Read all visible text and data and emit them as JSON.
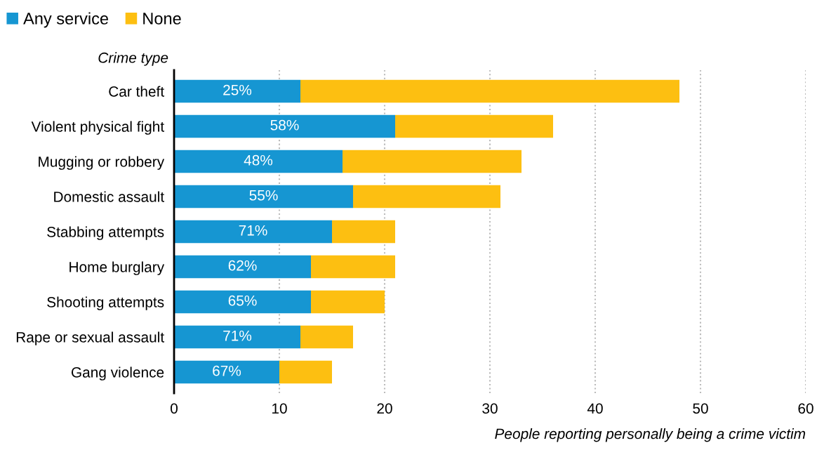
{
  "chart_data": {
    "type": "bar",
    "orientation": "horizontal",
    "stacked": true,
    "categories": [
      "Car theft",
      "Violent physical fight",
      "Mugging or robbery",
      "Domestic assault",
      "Stabbing attempts",
      "Home burglary",
      "Shooting attempts",
      "Rape or sexual assault",
      "Gang violence"
    ],
    "series": [
      {
        "name": "Any service",
        "color": "#1696d2",
        "values": [
          12,
          21,
          16,
          17,
          15,
          13,
          13,
          12,
          10
        ]
      },
      {
        "name": "None",
        "color": "#fdbf11",
        "values": [
          36,
          15,
          17,
          14,
          6,
          8,
          7,
          5,
          5
        ]
      }
    ],
    "annotations": [
      "25%",
      "58%",
      "48%",
      "55%",
      "71%",
      "62%",
      "65%",
      "71%",
      "67%"
    ],
    "xlim": [
      0,
      60
    ],
    "xticks": [
      0,
      10,
      20,
      30,
      40,
      50,
      60
    ],
    "xlabel": "People reporting personally being a crime victim",
    "ylabel": "Crime type",
    "grid": "x",
    "legend": "top left"
  }
}
